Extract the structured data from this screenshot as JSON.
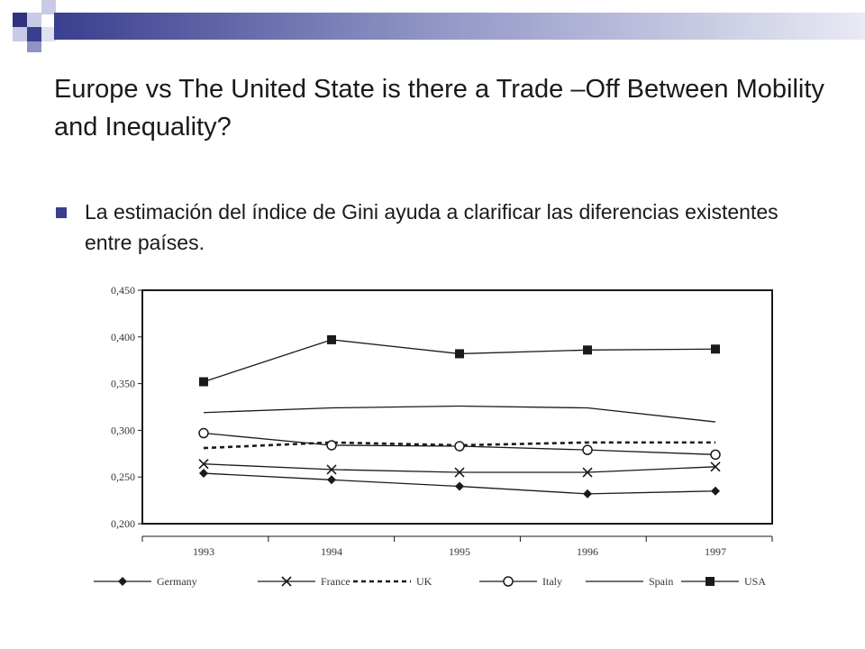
{
  "slide": {
    "title": "Europe vs The United State is there a Trade –Off Between Mobility and Inequality?",
    "bullet": "La estimación del índice de Gini ayuda a clarificar las diferencias existentes entre países."
  },
  "colors": {
    "accent": "#3a3f8f",
    "accent_light": "#8e93c4",
    "chart_ink": "#1a1a1a"
  },
  "chart_data": {
    "type": "line",
    "title": "",
    "xlabel": "",
    "ylabel": "",
    "categories": [
      "1993",
      "1994",
      "1995",
      "1996",
      "1997"
    ],
    "ylim": [
      0.2,
      0.45
    ],
    "yticks": [
      "0,200",
      "0,250",
      "0,300",
      "0,350",
      "0,400",
      "0,450"
    ],
    "grid": false,
    "legend_position": "bottom",
    "series": [
      {
        "name": "Germany",
        "marker": "diamond",
        "dash": "solid",
        "values": [
          0.254,
          0.247,
          0.24,
          0.232,
          0.235
        ]
      },
      {
        "name": "France",
        "marker": "x",
        "dash": "solid",
        "values": [
          0.264,
          0.258,
          0.255,
          0.255,
          0.261
        ]
      },
      {
        "name": "UK",
        "marker": "none",
        "dash": "dotted",
        "values": [
          0.281,
          0.287,
          0.284,
          0.287,
          0.287
        ]
      },
      {
        "name": "Italy",
        "marker": "circle",
        "dash": "solid",
        "values": [
          0.297,
          0.284,
          0.283,
          0.279,
          0.274
        ]
      },
      {
        "name": "Spain",
        "marker": "none",
        "dash": "solid",
        "values": [
          0.319,
          0.324,
          0.326,
          0.324,
          0.309
        ]
      },
      {
        "name": "USA",
        "marker": "square",
        "dash": "solid",
        "values": [
          0.352,
          0.397,
          0.382,
          0.386,
          0.387
        ]
      }
    ]
  }
}
